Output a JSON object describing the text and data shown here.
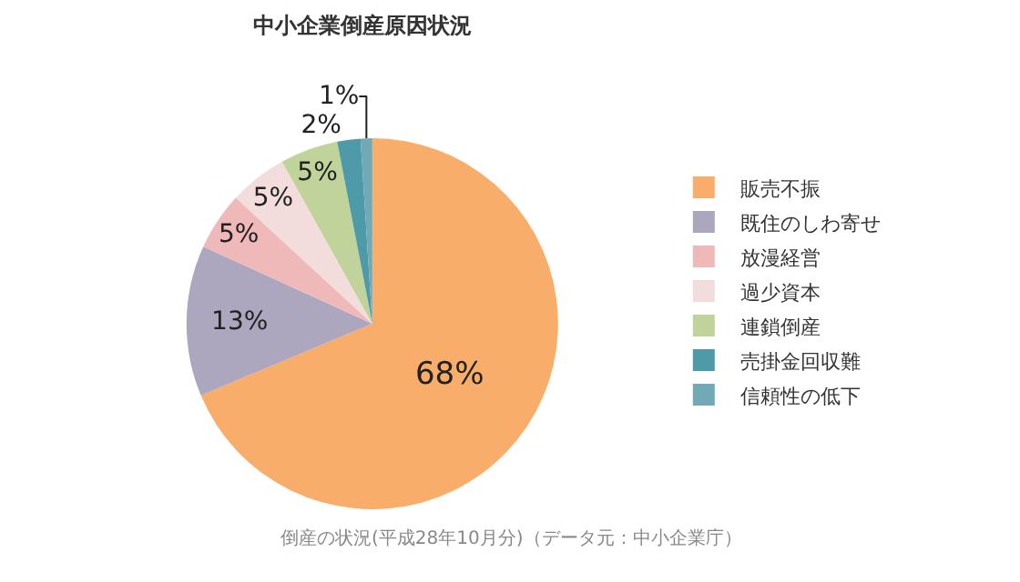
{
  "chart_data": {
    "type": "pie",
    "title": "中小企業倒産原因状況",
    "categories": [
      "販売不振",
      "既住のしわ寄せ",
      "放漫経営",
      "過少資本",
      "連鎖倒産",
      "売掛金回収難",
      "信頼性の低下"
    ],
    "values": [
      68,
      13,
      5,
      5,
      5,
      2,
      1
    ],
    "value_labels": [
      "68%",
      "13%",
      "5%",
      "5%",
      "5%",
      "2%",
      "1%"
    ],
    "colors": [
      "#f9ad6a",
      "#aca6bf",
      "#efb9b9",
      "#f2dcdc",
      "#bfd39a",
      "#4e9aa8",
      "#72a9b6"
    ],
    "legend": "right",
    "annotations": [
      "倒産の状況(平成28年10月分)（データ元：中小企業庁）"
    ]
  }
}
